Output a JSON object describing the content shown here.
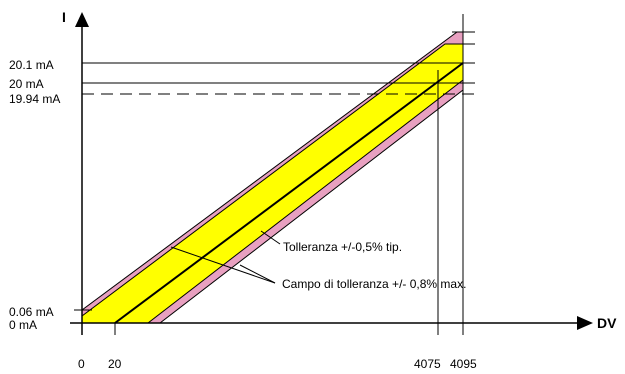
{
  "axes": {
    "y_name": "I",
    "x_name": "DV"
  },
  "y_labels": {
    "v20_1": "20.1 mA",
    "v20": "20 mA",
    "v19_94": "19.94 mA",
    "v0_06": "0.06 mA",
    "v0": "0 mA"
  },
  "x_labels": {
    "v0": "0",
    "v20": "20",
    "v4075": "4075",
    "v4095": "4095"
  },
  "annotations": {
    "typical": "Tolleranza +/-0,5% tip.",
    "max": "Campo di tolleranza +/- 0,8% max."
  },
  "colors": {
    "outer_band": "#e8a0c0",
    "inner_band": "#ffff00",
    "line": "#000000"
  }
}
